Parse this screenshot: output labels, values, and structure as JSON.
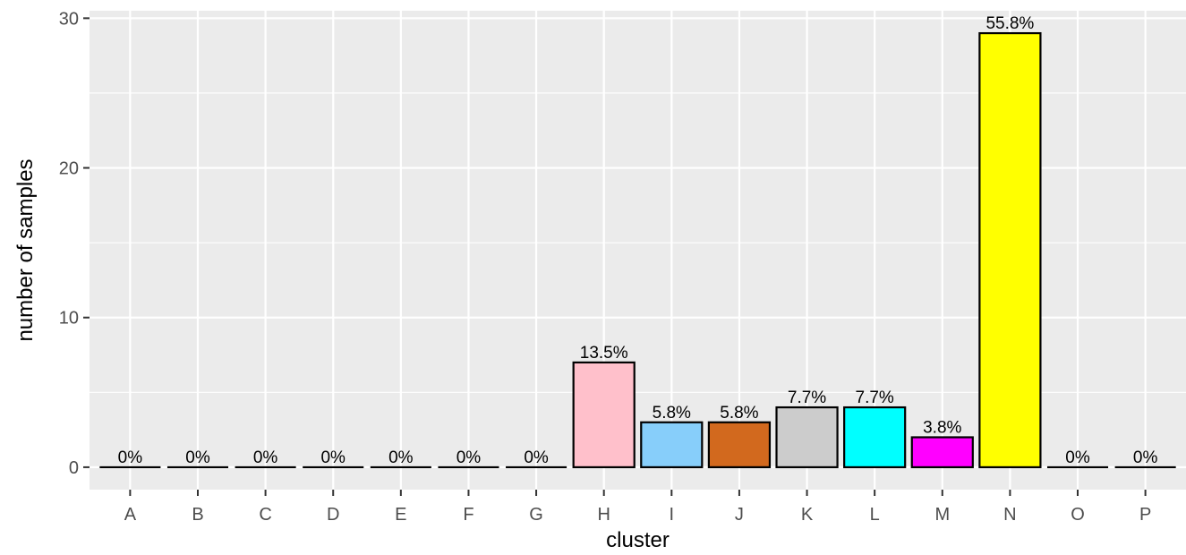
{
  "chart_data": {
    "type": "bar",
    "title": "",
    "xlabel": "cluster",
    "ylabel": "number of samples",
    "ylim": [
      -1.5,
      30.5
    ],
    "yticks": [
      0,
      10,
      20,
      30
    ],
    "grid": true,
    "legend": "none",
    "categories": [
      "A",
      "B",
      "C",
      "D",
      "E",
      "F",
      "G",
      "H",
      "I",
      "J",
      "K",
      "L",
      "M",
      "N",
      "O",
      "P"
    ],
    "values": [
      0,
      0,
      0,
      0,
      0,
      0,
      0,
      7,
      3,
      3,
      4,
      4,
      2,
      29,
      0,
      0
    ],
    "labels": [
      "0%",
      "0%",
      "0%",
      "0%",
      "0%",
      "0%",
      "0%",
      "13.5%",
      "5.8%",
      "5.8%",
      "7.7%",
      "7.7%",
      "3.8%",
      "55.8%",
      "0%",
      "0%"
    ],
    "colors": [
      "#000000",
      "#000000",
      "#000000",
      "#000000",
      "#000000",
      "#000000",
      "#000000",
      "#FFC0CB",
      "#87CEFA",
      "#D2691E",
      "#CCCCCC",
      "#00FFFF",
      "#FF00FF",
      "#FFFF00",
      "#000000",
      "#000000"
    ],
    "panel_color": "#EBEBEB",
    "grid_color": "#FFFFFF"
  }
}
